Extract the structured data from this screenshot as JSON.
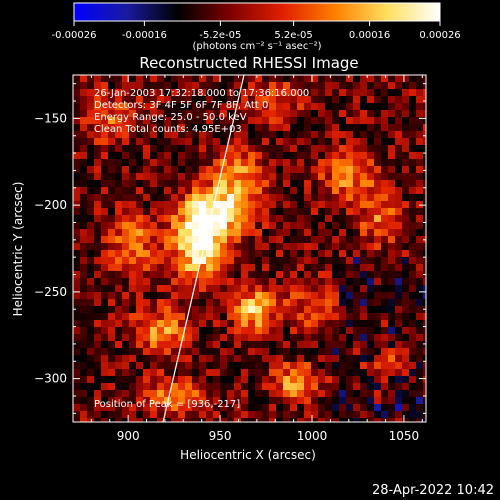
{
  "chart_data": {
    "type": "heatmap",
    "title": "Reconstructed RHESSI Image",
    "xlabel": "Heliocentric X (arcsec)",
    "ylabel": "Heliocentric Y (arcsec)",
    "xlim": [
      870,
      1062
    ],
    "ylim": [
      -325,
      -125
    ],
    "x_ticks": [
      900,
      950,
      1000,
      1050
    ],
    "y_ticks": [
      -300,
      -250,
      -200,
      -150
    ],
    "grid": false,
    "colorbar": {
      "orientation": "horizontal",
      "placement": "top",
      "range": [
        -0.00026,
        0.00026
      ],
      "tick_values": [
        -0.00026,
        -0.00016,
        -5.2e-05,
        5.2e-05,
        0.00016,
        0.00026
      ],
      "tick_labels": [
        "-0.00026",
        "-0.00016",
        "-5.2e-05",
        "5.2e-05",
        "0.00016",
        "0.00026"
      ],
      "unit_label": "(photons cm⁻² s⁻¹ asec⁻²)",
      "colormap": [
        "#0000ff",
        "#1a1aa0",
        "#000000",
        "#800000",
        "#e02000",
        "#ff8000",
        "#ffe060",
        "#ffffff"
      ]
    },
    "annotations": {
      "time_range": "26-Jan-2003 17:32:18.000 to 17:36:16.000",
      "detectors": "Detectors: 3F 4F 5F 6F 7F 8F, Att 0",
      "energy_range": "Energy Range: 25.0 - 50.0 keV",
      "clean": "Clean     Total counts: 4.95E+03",
      "peak": "Position of Peak = [936,-217]"
    },
    "limb_line": {
      "x": [
        919,
        963
      ],
      "y": [
        -325,
        -125
      ],
      "color": "#ffffff"
    },
    "intensity_sources": [
      {
        "x": 938,
        "y": -222,
        "amp": 1.0,
        "sx": 9,
        "sy": 14
      },
      {
        "x": 948,
        "y": -205,
        "amp": 0.75,
        "sx": 12,
        "sy": 10
      },
      {
        "x": 960,
        "y": -185,
        "amp": 0.55,
        "sx": 10,
        "sy": 12
      },
      {
        "x": 968,
        "y": -260,
        "amp": 0.75,
        "sx": 7,
        "sy": 8
      },
      {
        "x": 991,
        "y": -302,
        "amp": 0.6,
        "sx": 9,
        "sy": 7
      },
      {
        "x": 918,
        "y": -272,
        "amp": 0.5,
        "sx": 11,
        "sy": 9
      },
      {
        "x": 903,
        "y": -222,
        "amp": 0.45,
        "sx": 9,
        "sy": 12
      },
      {
        "x": 1020,
        "y": -184,
        "amp": 0.5,
        "sx": 10,
        "sy": 10
      },
      {
        "x": 1038,
        "y": -208,
        "amp": 0.45,
        "sx": 8,
        "sy": 10
      },
      {
        "x": 925,
        "y": -310,
        "amp": 0.45,
        "sx": 12,
        "sy": 7
      },
      {
        "x": 1000,
        "y": -258,
        "amp": 0.3,
        "sx": 14,
        "sy": 10
      },
      {
        "x": 890,
        "y": -150,
        "amp": 0.35,
        "sx": 10,
        "sy": 10
      },
      {
        "x": 980,
        "y": -140,
        "amp": 0.35,
        "sx": 10,
        "sy": 8
      },
      {
        "x": 1040,
        "y": -290,
        "amp": 0.25,
        "sx": 10,
        "sy": 10
      }
    ]
  },
  "footer": {
    "timestamp": "28-Apr-2022 10:42"
  }
}
